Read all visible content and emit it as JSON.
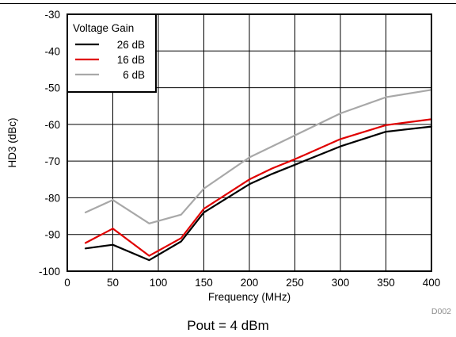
{
  "chart_data": {
    "type": "line",
    "xlabel": "Frequency (MHz)",
    "ylabel": "HD3 (dBc)",
    "xlim": [
      0,
      400
    ],
    "ylim": [
      -100,
      -30
    ],
    "xticks": [
      0,
      50,
      100,
      150,
      200,
      250,
      300,
      350,
      400
    ],
    "yticks": [
      -30,
      -40,
      -50,
      -60,
      -70,
      -80,
      -90,
      -100
    ],
    "grid": true,
    "legend": {
      "title": "Voltage Gain",
      "position": "top-left"
    },
    "series": [
      {
        "name": "26 dB",
        "color": "#000000",
        "x": [
          20,
          50,
          90,
          125,
          150,
          200,
          225,
          250,
          300,
          350,
          400
        ],
        "y": [
          -93.8,
          -92.8,
          -97.0,
          -91.9,
          -84.0,
          -76.3,
          -73.5,
          -71.0,
          -66.0,
          -62.0,
          -60.6
        ]
      },
      {
        "name": "16 dB",
        "color": "#e00000",
        "x": [
          20,
          50,
          90,
          125,
          150,
          200,
          225,
          250,
          300,
          350,
          400
        ],
        "y": [
          -92.3,
          -88.4,
          -95.8,
          -91.0,
          -83.0,
          -75.0,
          -72.0,
          -69.5,
          -64.0,
          -60.2,
          -58.6
        ]
      },
      {
        "name": "6 dB",
        "color": "#a8a8a8",
        "x": [
          20,
          50,
          90,
          125,
          150,
          200,
          225,
          250,
          300,
          350,
          400
        ],
        "y": [
          -84.0,
          -80.6,
          -87.0,
          -84.6,
          -77.5,
          -69.0,
          -66.0,
          -63.0,
          -57.0,
          -52.6,
          -50.6
        ]
      }
    ]
  },
  "figure_code": "D002",
  "caption": "Pout = 4 dBm"
}
